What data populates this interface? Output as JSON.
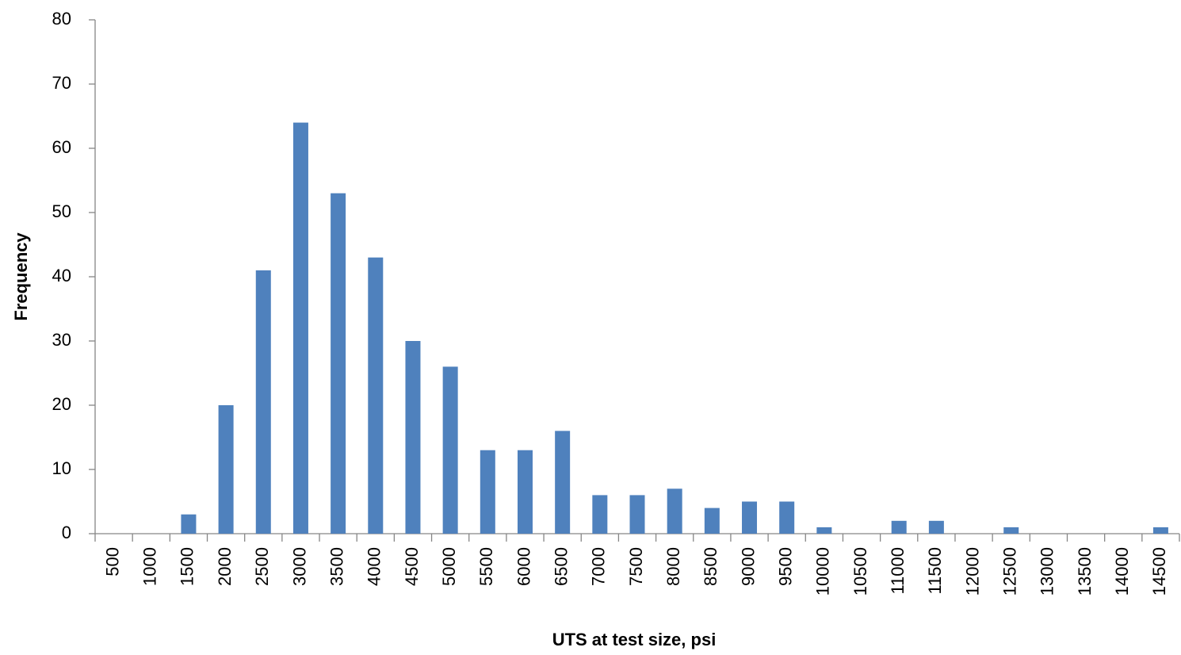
{
  "chart_data": {
    "type": "bar",
    "x_label": "UTS at test size, psi",
    "y_label": "Frequency",
    "categories": [
      "500",
      "1000",
      "1500",
      "2000",
      "2500",
      "3000",
      "3500",
      "4000",
      "4500",
      "5000",
      "5500",
      "6000",
      "6500",
      "7000",
      "7500",
      "8000",
      "8500",
      "9000",
      "9500",
      "10000",
      "10500",
      "11000",
      "11500",
      "12000",
      "12500",
      "13000",
      "13500",
      "14000",
      "14500"
    ],
    "values": [
      0,
      0,
      3,
      20,
      41,
      64,
      53,
      43,
      30,
      26,
      13,
      13,
      16,
      6,
      6,
      7,
      4,
      5,
      5,
      1,
      0,
      2,
      2,
      0,
      1,
      0,
      0,
      0,
      1
    ],
    "color": "#4f81bd",
    "ylim": [
      0,
      80
    ],
    "yticks": [
      0,
      10,
      20,
      30,
      40,
      50,
      60,
      70,
      80
    ],
    "grid": false
  }
}
